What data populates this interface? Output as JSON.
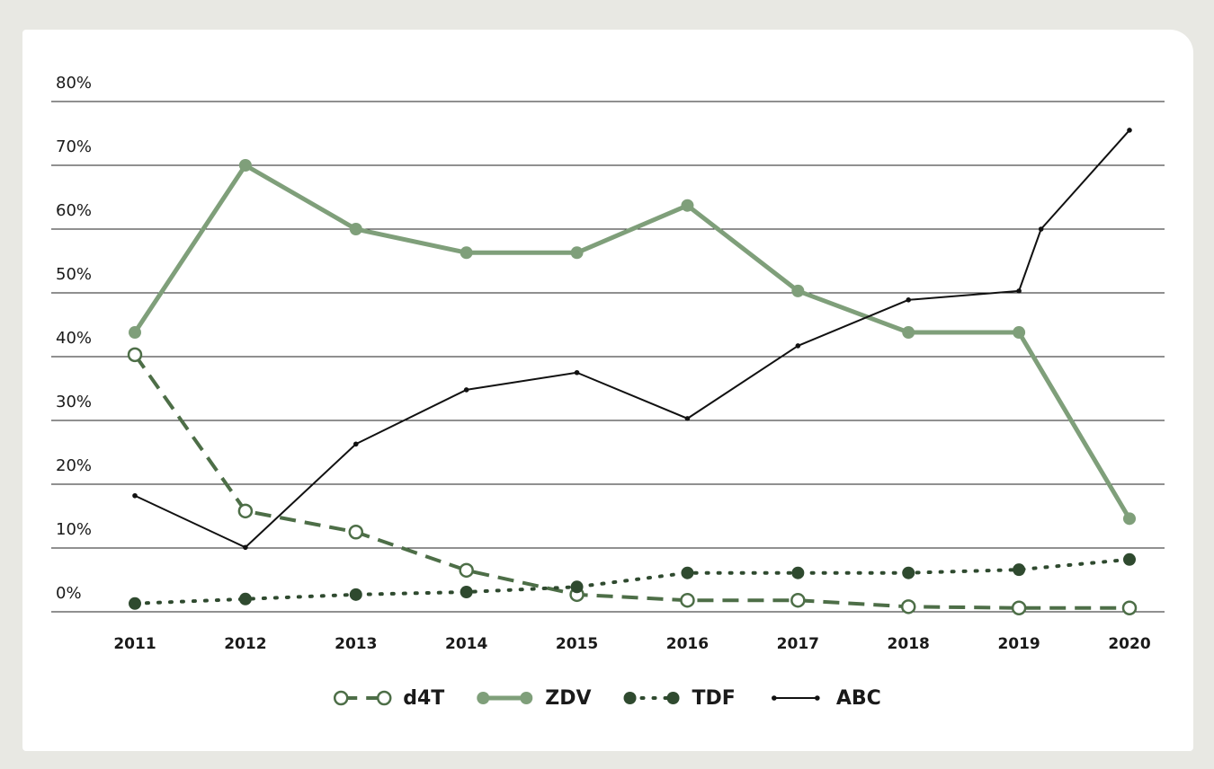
{
  "chart_data": {
    "type": "line",
    "x": [
      2011,
      2012,
      2013,
      2014,
      2015,
      2016,
      2017,
      2018,
      2019,
      2020
    ],
    "xlim": [
      2011,
      2020
    ],
    "xticks": [
      2011,
      2012,
      2013,
      2014,
      2015,
      2016,
      2017,
      2018,
      2019,
      2020
    ],
    "ylim": [
      0,
      80
    ],
    "yticks": [
      {
        "value": 0,
        "label": "0%"
      },
      {
        "value": 10,
        "label": "10%"
      },
      {
        "value": 20,
        "label": "20%"
      },
      {
        "value": 30,
        "label": "30%"
      },
      {
        "value": 40,
        "label": "40%"
      },
      {
        "value": 50,
        "label": "50%"
      },
      {
        "value": 60,
        "label": "60%"
      },
      {
        "value": 70,
        "label": "70%"
      },
      {
        "value": 80,
        "label": "80%"
      }
    ],
    "grid": true,
    "legend": "bottom",
    "series": [
      {
        "name": "d4T",
        "color": "#4d6e47",
        "style": "dashed",
        "marker": "hollow",
        "values": [
          40.3,
          15.8,
          12.5,
          6.5,
          2.7,
          1.8,
          1.8,
          0.8,
          0.6,
          0.6
        ]
      },
      {
        "name": "ZDV",
        "color": "#7f9f7a",
        "style": "thick",
        "marker": "filled",
        "values": [
          43.8,
          70,
          60,
          56.3,
          56.3,
          63.7,
          50.3,
          43.8,
          43.8,
          14.6
        ]
      },
      {
        "name": "TDF",
        "color": "#2f4a2f",
        "style": "dotted",
        "marker": "filled",
        "values": [
          1.3,
          2,
          2.7,
          3.1,
          3.9,
          6.1,
          6.1,
          6.1,
          6.6,
          8.2
        ]
      },
      {
        "name": "ABC",
        "color": "#111111",
        "style": "thin",
        "marker": "small",
        "x": [
          2011,
          2012,
          2013,
          2014,
          2015,
          2016,
          2017,
          2018,
          2019,
          2019.2,
          2020
        ],
        "values": [
          18.2,
          10.1,
          26.3,
          34.8,
          37.5,
          30.3,
          41.7,
          48.9,
          50.3,
          60,
          75.5
        ]
      }
    ]
  }
}
